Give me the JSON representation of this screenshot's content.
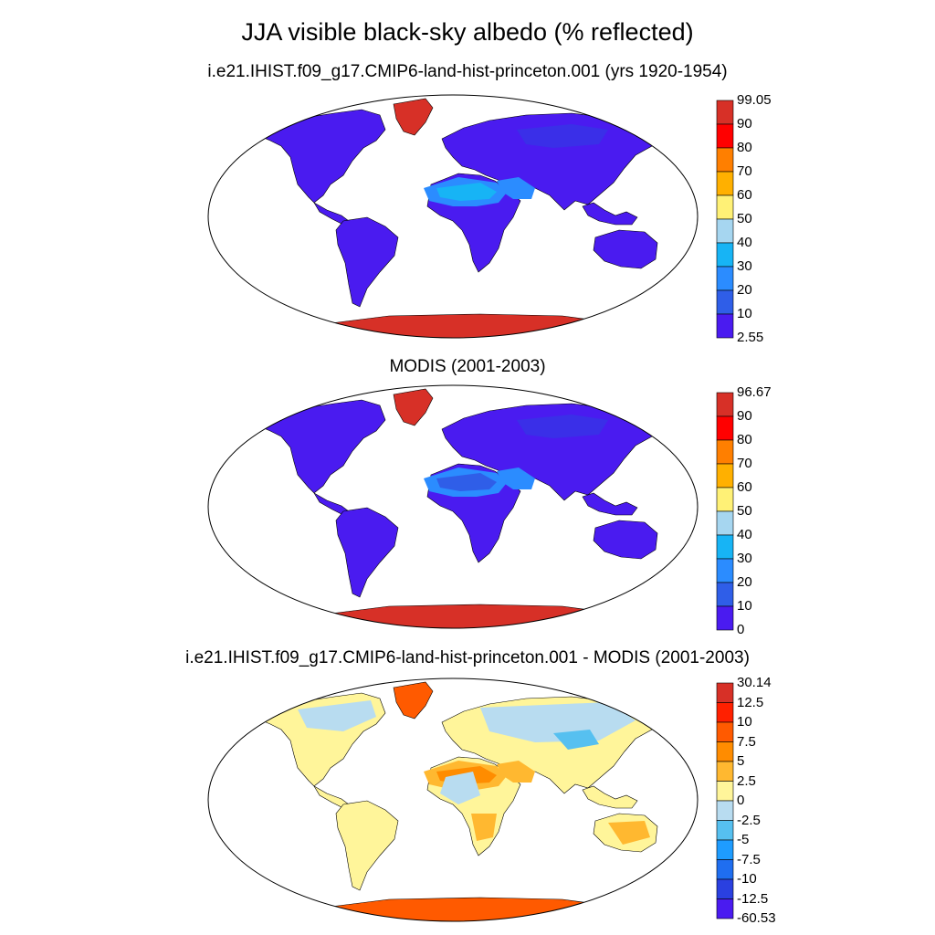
{
  "title": "JJA visible black-sky albedo (% reflected)",
  "panels": [
    {
      "subtitle": "i.e21.IHIST.f09_g17.CMIP6-land-hist-princeton.001 (yrs 1920-1954)",
      "colorbar": {
        "labels": [
          "99.05",
          "90",
          "80",
          "70",
          "60",
          "50",
          "40",
          "30",
          "20",
          "10",
          "2.55"
        ],
        "colors": [
          "#d73027",
          "#ff0000",
          "#ff7f00",
          "#ffb000",
          "#fff176",
          "#a6d6f0",
          "#17b4f5",
          "#2b8cff",
          "#2f5ee8",
          "#4a1bf0"
        ]
      }
    },
    {
      "subtitle": "MODIS (2001-2003)",
      "colorbar": {
        "labels": [
          "96.67",
          "90",
          "80",
          "70",
          "60",
          "50",
          "40",
          "30",
          "20",
          "10",
          "0"
        ],
        "colors": [
          "#d73027",
          "#ff0000",
          "#ff7f00",
          "#ffb000",
          "#fff176",
          "#a6d6f0",
          "#17b4f5",
          "#2b8cff",
          "#2f5ee8",
          "#4a1bf0"
        ]
      }
    },
    {
      "subtitle": "i.e21.IHIST.f09_g17.CMIP6-land-hist-princeton.001 - MODIS (2001-2003)",
      "colorbar": {
        "labels": [
          "30.14",
          "12.5",
          "10",
          "7.5",
          "5",
          "2.5",
          "0",
          "-2.5",
          "-5",
          "-7.5",
          "-10",
          "-12.5",
          "-60.53"
        ],
        "colors": [
          "#d73027",
          "#ff2000",
          "#ff5a00",
          "#ff8c00",
          "#ffb830",
          "#fff59a",
          "#b8dcf0",
          "#56c0f0",
          "#1e9cff",
          "#1f6ef0",
          "#2a40e0",
          "#4a1bf0"
        ]
      }
    }
  ],
  "fills": {
    "p1": {
      "land": "#4a1bf0",
      "desert": "#2b8cff",
      "desert_core": "#17b4f5",
      "ice": "#d73027",
      "tropics": "#3a2fe8"
    },
    "p2": {
      "land": "#4a1bf0",
      "desert": "#2b8cff",
      "desert_core": "#2f5ee8",
      "ice": "#d73027",
      "tropics": "#3a2fe8"
    },
    "p3": {
      "land": "#fff59a",
      "light": "#b8dcf0",
      "desert": "#ffb830",
      "hot": "#ff8c00",
      "ice": "#ff5a00",
      "cool": "#56c0f0"
    }
  }
}
